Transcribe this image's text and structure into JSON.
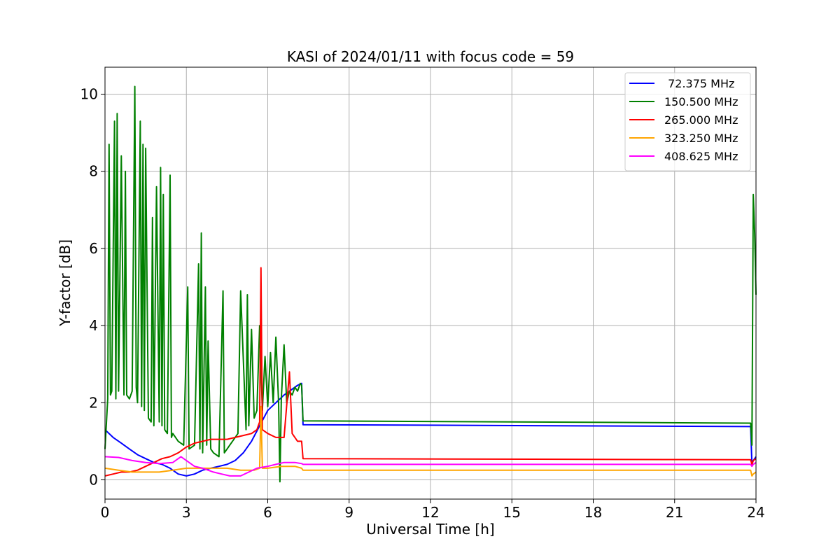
{
  "chart_data": {
    "type": "line",
    "title": "KASI of 2024/01/11 with focus code = 59",
    "xlabel": "Universal Time [h]",
    "ylabel": "Y-factor [dB]",
    "xlim": [
      0,
      24
    ],
    "ylim": [
      -0.5,
      10.7
    ],
    "xticks": [
      0,
      3,
      6,
      9,
      12,
      15,
      18,
      21,
      24
    ],
    "yticks": [
      0,
      2,
      4,
      6,
      8,
      10
    ],
    "grid": true,
    "legend_position": "top-right",
    "series": [
      {
        "name": " 72.375 MHz",
        "color": "#0000ff",
        "x": [
          0.0,
          0.3,
          0.6,
          0.9,
          1.2,
          1.5,
          1.8,
          2.1,
          2.4,
          2.7,
          3.0,
          3.3,
          3.6,
          3.9,
          4.2,
          4.5,
          4.8,
          5.1,
          5.4,
          5.7,
          6.0,
          6.3,
          6.6,
          6.9,
          7.1,
          7.25,
          7.3,
          23.8,
          23.85,
          23.9,
          24.0
        ],
        "y": [
          1.3,
          1.1,
          0.95,
          0.8,
          0.65,
          0.55,
          0.45,
          0.4,
          0.3,
          0.15,
          0.1,
          0.15,
          0.25,
          0.3,
          0.35,
          0.4,
          0.5,
          0.7,
          1.0,
          1.4,
          1.8,
          2.0,
          2.2,
          2.35,
          2.45,
          2.5,
          1.43,
          1.38,
          0.4,
          0.5,
          0.6
        ]
      },
      {
        "name": "150.500 MHz",
        "color": "#008000",
        "x": [
          0.0,
          0.1,
          0.15,
          0.2,
          0.25,
          0.35,
          0.4,
          0.45,
          0.5,
          0.6,
          0.7,
          0.75,
          0.8,
          0.9,
          1.0,
          1.1,
          1.15,
          1.2,
          1.3,
          1.35,
          1.4,
          1.45,
          1.5,
          1.6,
          1.7,
          1.75,
          1.8,
          1.9,
          2.0,
          2.05,
          2.1,
          2.15,
          2.2,
          2.3,
          2.4,
          2.45,
          2.5,
          2.7,
          2.9,
          3.05,
          3.1,
          3.3,
          3.45,
          3.5,
          3.55,
          3.6,
          3.7,
          3.75,
          3.8,
          3.9,
          4.0,
          4.2,
          4.35,
          4.4,
          4.5,
          4.7,
          4.9,
          5.0,
          5.2,
          5.25,
          5.3,
          5.4,
          5.5,
          5.6,
          5.7,
          5.8,
          5.9,
          6.0,
          6.1,
          6.2,
          6.3,
          6.4,
          6.45,
          6.5,
          6.6,
          6.7,
          6.8,
          6.9,
          7.0,
          7.1,
          7.2,
          7.25,
          7.3,
          23.8,
          23.85,
          23.9,
          23.95,
          24.0
        ],
        "y": [
          0.8,
          2.1,
          8.7,
          2.2,
          2.3,
          9.3,
          2.1,
          9.5,
          2.3,
          8.4,
          2.2,
          8.0,
          2.2,
          2.1,
          2.3,
          10.2,
          2.4,
          2.0,
          9.3,
          1.9,
          8.7,
          1.8,
          8.6,
          1.6,
          1.5,
          6.8,
          1.4,
          7.6,
          1.5,
          8.1,
          1.4,
          7.4,
          1.3,
          1.2,
          7.9,
          1.1,
          1.2,
          1.0,
          0.9,
          5.0,
          0.8,
          0.9,
          5.6,
          0.8,
          6.4,
          0.7,
          5.0,
          0.9,
          3.6,
          0.8,
          0.7,
          0.6,
          4.9,
          0.7,
          0.8,
          1.0,
          1.2,
          4.9,
          1.3,
          4.8,
          1.4,
          3.9,
          1.6,
          1.8,
          4.0,
          1.8,
          3.2,
          1.9,
          3.3,
          2.0,
          3.7,
          2.0,
          -0.05,
          2.1,
          3.5,
          2.0,
          2.3,
          2.2,
          2.4,
          2.3,
          2.5,
          2.45,
          1.53,
          1.47,
          0.9,
          7.4,
          6.4,
          4.8
        ]
      },
      {
        "name": "265.000 MHz",
        "color": "#ff0000",
        "x": [
          0.0,
          0.3,
          0.6,
          0.9,
          1.2,
          1.5,
          1.8,
          2.1,
          2.4,
          2.7,
          3.0,
          3.3,
          3.6,
          3.9,
          4.2,
          4.5,
          4.8,
          5.1,
          5.4,
          5.6,
          5.7,
          5.75,
          5.8,
          6.0,
          6.3,
          6.6,
          6.8,
          6.9,
          7.0,
          7.1,
          7.25,
          7.3,
          23.8,
          23.85,
          23.9,
          24.0
        ],
        "y": [
          0.1,
          0.15,
          0.2,
          0.2,
          0.25,
          0.35,
          0.45,
          0.55,
          0.6,
          0.7,
          0.85,
          0.95,
          1.0,
          1.05,
          1.05,
          1.05,
          1.1,
          1.15,
          1.2,
          1.3,
          1.5,
          5.5,
          1.3,
          1.2,
          1.1,
          1.1,
          2.8,
          1.2,
          1.1,
          1.0,
          1.0,
          0.55,
          0.52,
          0.4,
          0.5,
          0.55
        ]
      },
      {
        "name": "323.250 MHz",
        "color": "#ffa500",
        "x": [
          0.0,
          0.5,
          1.0,
          1.5,
          2.0,
          2.5,
          3.0,
          3.5,
          4.0,
          4.5,
          5.0,
          5.5,
          5.7,
          5.75,
          5.8,
          6.0,
          6.5,
          7.0,
          7.25,
          7.3,
          23.8,
          23.85,
          23.9,
          24.0
        ],
        "y": [
          0.3,
          0.25,
          0.2,
          0.2,
          0.2,
          0.25,
          0.3,
          0.3,
          0.3,
          0.3,
          0.25,
          0.25,
          0.3,
          1.9,
          0.3,
          0.3,
          0.35,
          0.35,
          0.3,
          0.25,
          0.25,
          0.1,
          0.15,
          0.2
        ]
      },
      {
        "name": "408.625 MHz",
        "color": "#ff00ff",
        "x": [
          0.0,
          0.5,
          1.0,
          1.5,
          2.0,
          2.5,
          2.8,
          3.0,
          3.3,
          3.6,
          4.0,
          4.3,
          4.6,
          5.0,
          5.3,
          5.6,
          6.0,
          6.3,
          6.6,
          7.0,
          7.25,
          7.3,
          23.8,
          23.85,
          23.9,
          24.0
        ],
        "y": [
          0.6,
          0.58,
          0.5,
          0.45,
          0.42,
          0.45,
          0.6,
          0.5,
          0.35,
          0.3,
          0.2,
          0.15,
          0.1,
          0.1,
          0.2,
          0.3,
          0.35,
          0.4,
          0.45,
          0.45,
          0.42,
          0.4,
          0.4,
          0.35,
          0.4,
          0.45
        ]
      }
    ]
  }
}
